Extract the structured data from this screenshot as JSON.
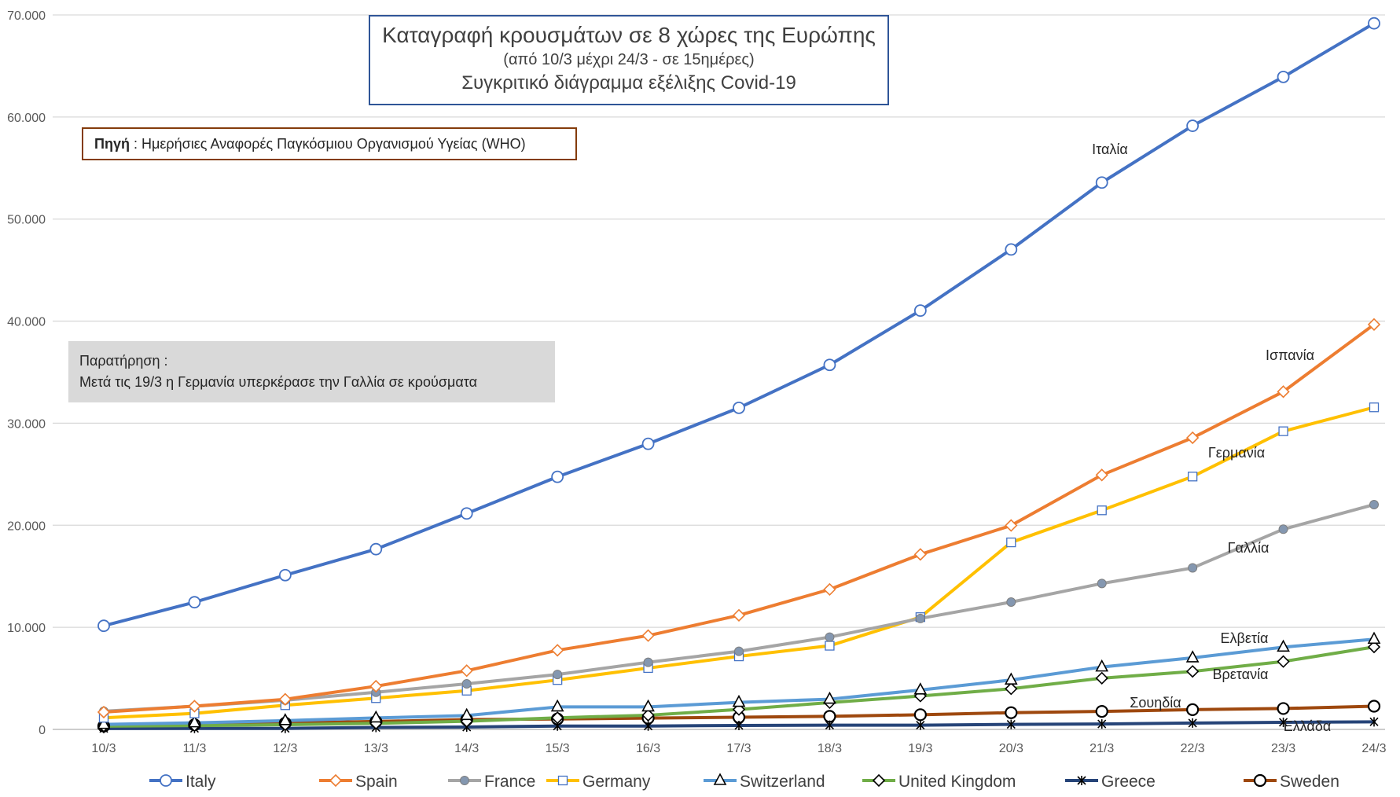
{
  "title": {
    "main": "Καταγραφή κρουσμάτων σε 8 χώρες της Ευρώπης",
    "period": "(από 10/3 μέχρι 24/3 - σε 15ημέρες)",
    "subtitle": "Συγκριτικό διάγραμμα εξέλιξης Covid-19"
  },
  "source": {
    "label": "Πηγή",
    "text": " : Ημερήσιες Αναφορές Παγκόσμιου Οργανισμού Υγείας (WHO)"
  },
  "note": {
    "title": "Παρατήρηση :",
    "text": "Μετά τις 19/3 η Γερμανία υπερκέρασε την Γαλλία σε κρούσματα"
  },
  "chart_data": {
    "type": "line",
    "title": "Καταγραφή κρουσμάτων σε 8 χώρες της Ευρώπης",
    "categories": [
      "10/3",
      "11/3",
      "12/3",
      "13/3",
      "14/3",
      "15/3",
      "16/3",
      "17/3",
      "18/3",
      "19/3",
      "20/3",
      "21/3",
      "22/3",
      "23/3",
      "24/3"
    ],
    "ylim": [
      0,
      70000
    ],
    "yticks": [
      0,
      10000,
      20000,
      30000,
      40000,
      50000,
      60000,
      70000
    ],
    "ytick_labels": [
      "0",
      "10.000",
      "20.000",
      "30.000",
      "40.000",
      "50.000",
      "60.000",
      "70.000"
    ],
    "grid": true,
    "legend_position": "bottom",
    "series": [
      {
        "name": "Italy",
        "label": "Ιταλία",
        "color": "#4472c4",
        "marker": "circle-open",
        "values": [
          10149,
          12462,
          15113,
          17660,
          21157,
          24747,
          27980,
          31506,
          35713,
          41035,
          47021,
          53578,
          59138,
          63927,
          69176
        ]
      },
      {
        "name": "Spain",
        "label": "Ισπανία",
        "color": "#ed7d31",
        "marker": "diamond-open",
        "values": [
          1695,
          2277,
          2950,
          4231,
          5753,
          7753,
          9191,
          11178,
          13716,
          17147,
          19980,
          24926,
          28572,
          33089,
          39673
        ]
      },
      {
        "name": "France",
        "label": "Γαλλία",
        "color": "#a5a5a5",
        "marker": "circle-filled",
        "values": [
          1784,
          2269,
          2860,
          3640,
          4469,
          5380,
          6573,
          7652,
          9043,
          10871,
          12475,
          14296,
          15821,
          19615,
          22025
        ]
      },
      {
        "name": "Germany",
        "label": "Γερμανία",
        "color": "#ffc000",
        "marker": "square-open",
        "values": [
          1139,
          1567,
          2369,
          3062,
          3795,
          4838,
          6012,
          7156,
          8198,
          10999,
          18323,
          21463,
          24774,
          29212,
          31554
        ]
      },
      {
        "name": "Switzerland",
        "label": "Ελβετία",
        "color": "#5b9bd5",
        "marker": "triangle-open",
        "values": [
          491,
          645,
          858,
          1125,
          1359,
          2200,
          2200,
          2650,
          2960,
          3863,
          4840,
          6113,
          7014,
          8060,
          8836
        ]
      },
      {
        "name": "United Kingdom",
        "label": "Βρετανία",
        "color": "#70ad47",
        "marker": "diamond-open",
        "values": [
          319,
          373,
          460,
          594,
          798,
          1140,
          1391,
          1950,
          2626,
          3269,
          3983,
          5018,
          5683,
          6650,
          8077
        ]
      },
      {
        "name": "Greece",
        "label": "Ελλάδα",
        "color": "#264478",
        "marker": "star",
        "values": [
          89,
          99,
          99,
          190,
          228,
          331,
          331,
          387,
          418,
          418,
          495,
          530,
          624,
          695,
          743
        ]
      },
      {
        "name": "Sweden",
        "label": "Σουηδία",
        "color": "#9e480e",
        "marker": "circle-open-bold",
        "values": [
          326,
          461,
          620,
          775,
          961,
          1022,
          1103,
          1190,
          1279,
          1439,
          1639,
          1763,
          1934,
          2046,
          2272
        ]
      }
    ]
  }
}
